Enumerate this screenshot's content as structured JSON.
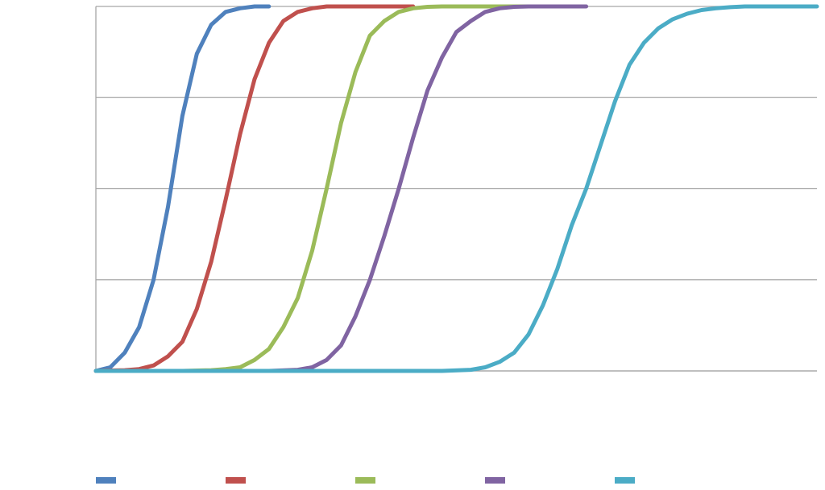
{
  "chart_data": {
    "type": "line",
    "title": "",
    "xlabel": "",
    "ylabel": "",
    "grid": true,
    "legend_placement": "bottom",
    "xlim": [
      0,
      50
    ],
    "ylim": [
      0,
      1
    ],
    "series": [
      {
        "color": "#4F81BD",
        "x": [
          0,
          1,
          2,
          3,
          4,
          5,
          6,
          7,
          8,
          9,
          10,
          11,
          12
        ],
        "values": [
          0.0,
          0.01,
          0.05,
          0.12,
          0.25,
          0.45,
          0.7,
          0.87,
          0.95,
          0.985,
          0.995,
          1.0,
          1.0
        ]
      },
      {
        "color": "#C0504D",
        "x": [
          0,
          2,
          3,
          4,
          5,
          6,
          7,
          8,
          9,
          10,
          11,
          12,
          13,
          14,
          15,
          16,
          17,
          18,
          19,
          20,
          22
        ],
        "values": [
          0.0,
          0.002,
          0.005,
          0.015,
          0.04,
          0.08,
          0.17,
          0.3,
          0.47,
          0.65,
          0.8,
          0.9,
          0.96,
          0.985,
          0.995,
          1.0,
          1.0,
          1.0,
          1.0,
          1.0,
          1.0
        ]
      },
      {
        "color": "#9BBB59",
        "x": [
          0,
          6,
          8,
          9,
          10,
          11,
          12,
          13,
          14,
          15,
          16,
          17,
          18,
          19,
          20,
          21,
          22,
          23,
          24,
          25,
          26,
          27,
          28,
          29,
          30
        ],
        "values": [
          0.0,
          0.0,
          0.002,
          0.005,
          0.01,
          0.03,
          0.06,
          0.12,
          0.2,
          0.33,
          0.5,
          0.68,
          0.82,
          0.92,
          0.96,
          0.985,
          0.995,
          0.999,
          1.0,
          1.0,
          1.0,
          1.0,
          1.0,
          1.0,
          1.0
        ]
      },
      {
        "color": "#8064A2",
        "x": [
          0,
          12,
          14,
          15,
          16,
          17,
          18,
          19,
          20,
          21,
          22,
          23,
          24,
          25,
          26,
          27,
          28,
          29,
          30,
          31,
          32,
          34
        ],
        "values": [
          0.0,
          0.0,
          0.003,
          0.01,
          0.03,
          0.07,
          0.15,
          0.25,
          0.37,
          0.5,
          0.64,
          0.77,
          0.86,
          0.93,
          0.96,
          0.985,
          0.995,
          0.999,
          1.0,
          1.0,
          1.0,
          1.0
        ]
      },
      {
        "color": "#4BACC6",
        "x": [
          0,
          24,
          26,
          27,
          28,
          29,
          30,
          31,
          32,
          33,
          34,
          35,
          36,
          37,
          38,
          39,
          40,
          41,
          42,
          43,
          44,
          45,
          46,
          47,
          48,
          50
        ],
        "values": [
          0.0,
          0.0,
          0.003,
          0.01,
          0.025,
          0.05,
          0.1,
          0.18,
          0.28,
          0.4,
          0.5,
          0.62,
          0.74,
          0.84,
          0.9,
          0.94,
          0.965,
          0.98,
          0.99,
          0.995,
          0.998,
          1.0,
          1.0,
          1.0,
          1.0,
          1.0
        ]
      }
    ]
  }
}
